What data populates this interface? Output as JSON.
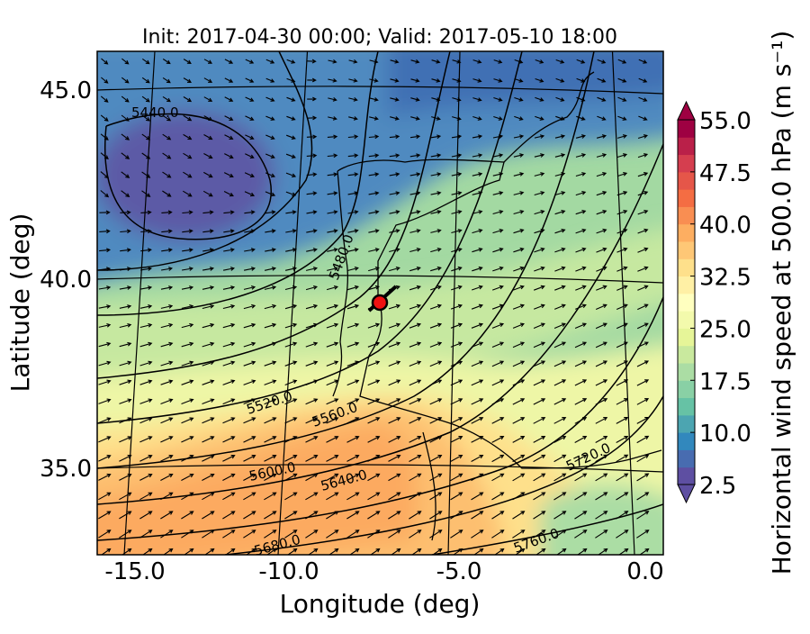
{
  "title": "Init: 2017-04-30 00:00; Valid: 2017-05-10 18:00",
  "x_axis": {
    "label": "Longitude (deg)",
    "ticks": [
      {
        "value": -15,
        "label": "-15.0"
      },
      {
        "value": -10,
        "label": "-10.0"
      },
      {
        "value": -5,
        "label": "-5.0"
      },
      {
        "value": 0,
        "label": "0.0"
      }
    ]
  },
  "y_axis": {
    "label": "Latitude (deg)",
    "ticks": [
      {
        "value": 35,
        "label": "35.0"
      },
      {
        "value": 40,
        "label": "40.0"
      },
      {
        "value": 45,
        "label": "45.0"
      }
    ]
  },
  "colorbar": {
    "label": "Horizontal wind speed at 500.0 hPa (m s⁻¹)",
    "ticks": [
      {
        "value": 2.5,
        "label": "2.5"
      },
      {
        "value": 10,
        "label": "10.0"
      },
      {
        "value": 17.5,
        "label": "17.5"
      },
      {
        "value": 25,
        "label": "25.0"
      },
      {
        "value": 32.5,
        "label": "32.5"
      },
      {
        "value": 40,
        "label": "40.0"
      },
      {
        "value": 47.5,
        "label": "47.5"
      },
      {
        "value": 55,
        "label": "55.0"
      }
    ]
  },
  "contour_labels": [
    "5440.0",
    "5480.0",
    "5520.0",
    "5560.0",
    "5600.0",
    "5640.0",
    "5680.0",
    "5720.0",
    "5760.0"
  ]
}
